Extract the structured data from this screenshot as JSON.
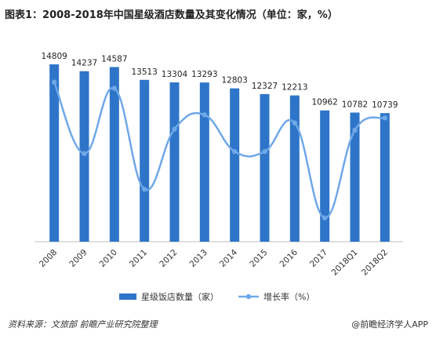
{
  "title": "图表1：2008-2018年中国星级酒店数量及其变化情况（单位：家，%）",
  "footer": {
    "source": "资料来源：文旅部 前瞻产业研究院整理",
    "brand": "@前瞻经济学人APP"
  },
  "colors": {
    "bar": "#2E75C9",
    "line": "#6FA8E8",
    "grid": "#d9d9d9"
  },
  "chart_data": {
    "type": "bar",
    "categories": [
      "2008",
      "2009",
      "2010",
      "2011",
      "2012",
      "2013",
      "2014",
      "2015",
      "2016",
      "2017",
      "2018Q1",
      "2018Q2"
    ],
    "series": [
      {
        "name": "星级饭店数量（家）",
        "type": "bar",
        "values": [
          14809,
          14237,
          14587,
          13513,
          13304,
          13293,
          12803,
          12327,
          12213,
          10962,
          10782,
          10739
        ]
      },
      {
        "name": "增长率（%）",
        "type": "line",
        "values": [
          3.1,
          -3.9,
          2.5,
          -7.4,
          -1.5,
          -0.1,
          -3.7,
          -3.7,
          -0.9,
          -10.2,
          -1.6,
          -0.4
        ]
      }
    ],
    "legend": "bottom-center",
    "grid": false
  }
}
